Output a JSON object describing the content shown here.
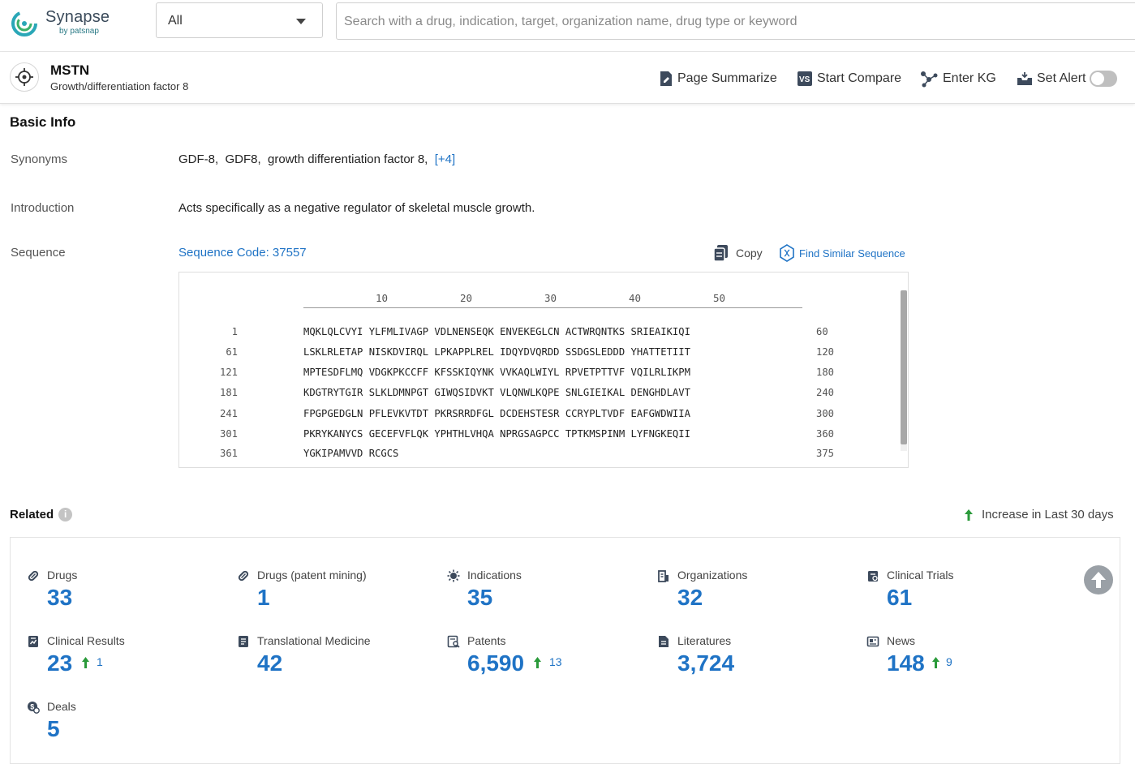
{
  "brand": {
    "name": "Synapse",
    "sub": "by patsnap"
  },
  "search": {
    "scope": "All",
    "placeholder": "Search with a drug, indication, target, organization name, drug type or keyword"
  },
  "target": {
    "symbol": "MSTN",
    "name": "Growth/differentiation factor 8"
  },
  "actions": {
    "summarize": "Page Summarize",
    "compare": "Start Compare",
    "kg": "Enter KG",
    "alert": "Set Alert",
    "alert_on": false
  },
  "basic_info": {
    "title": "Basic Info",
    "synonyms_label": "Synonyms",
    "synonyms": "GDF-8,  GDF8,  growth differentiation factor 8,",
    "synonyms_more": "[+4]",
    "intro_label": "Introduction",
    "intro": "Acts specifically as a negative regulator of skeletal muscle growth.",
    "sequence_label": "Sequence",
    "sequence_code": "Sequence Code: 37557",
    "copy": "Copy",
    "find_similar": "Find Similar Sequence"
  },
  "sequence": {
    "ticks": [
      "10",
      "20",
      "30",
      "40",
      "50"
    ],
    "rows": [
      {
        "start": "1",
        "seq": "MQKLQLCVYI YLFMLIVAGP VDLNENSEQK ENVEKEGLCN ACTWRQNTKS SRIEAIKIQI",
        "end": "60"
      },
      {
        "start": "61",
        "seq": "LSKLRLETAP NISKDVIRQL LPKAPPLREL IDQYDVQRDD SSDGSLEDDD YHATTETIIT",
        "end": "120"
      },
      {
        "start": "121",
        "seq": "MPTESDFLMQ VDGKPKCCFF KFSSKIQYNK VVKAQLWIYL RPVETPTTVF VQILRLIKPM",
        "end": "180"
      },
      {
        "start": "181",
        "seq": "KDGTRYTGIR SLKLDMNPGT GIWQSIDVKT VLQNWLKQPE SNLGIEIKAL DENGHDLAVT",
        "end": "240"
      },
      {
        "start": "241",
        "seq": "FPGPGEDGLN PFLEVKVTDT PKRSRRDFGL DCDEHSTESR CCRYPLTVDF EAFGWDWIIA",
        "end": "300"
      },
      {
        "start": "301",
        "seq": "PKRYKANYCS GECEFVFLQK YPHTHLVHQA NPRGSAGPCC TPTKMSPINM LYFNGKEQII",
        "end": "360"
      },
      {
        "start": "361",
        "seq": "YGKIPAMVVD RCGCS",
        "end": "375"
      }
    ]
  },
  "related": {
    "title": "Related",
    "legend": "Increase in Last 30 days",
    "stats": [
      {
        "label": "Drugs",
        "value": "33",
        "inc": ""
      },
      {
        "label": "Drugs (patent mining)",
        "value": "1",
        "inc": ""
      },
      {
        "label": "Indications",
        "value": "35",
        "inc": ""
      },
      {
        "label": "Organizations",
        "value": "32",
        "inc": ""
      },
      {
        "label": "Clinical Trials",
        "value": "61",
        "inc": ""
      },
      {
        "label": "Clinical Results",
        "value": "23",
        "inc": "1"
      },
      {
        "label": "Translational Medicine",
        "value": "42",
        "inc": ""
      },
      {
        "label": "Patents",
        "value": "6,590",
        "inc": "13"
      },
      {
        "label": "Literatures",
        "value": "3,724",
        "inc": ""
      },
      {
        "label": "News",
        "value": "148",
        "inc": "9"
      },
      {
        "label": "Deals",
        "value": "5",
        "inc": ""
      }
    ]
  },
  "colors": {
    "accent": "#1f73c5",
    "increase": "#2a9a3a",
    "brand": "#2a7a86"
  }
}
